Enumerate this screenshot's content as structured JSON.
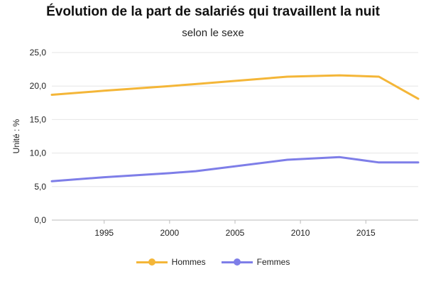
{
  "chart_data": {
    "type": "line",
    "title": "Évolution de la part de salariés qui travaillent la nuit",
    "subtitle": "selon le sexe",
    "xlabel": "",
    "ylabel": "Unité : %",
    "xlim": [
      1991,
      2019
    ],
    "ylim": [
      0,
      25
    ],
    "x_ticks": [
      1995,
      2000,
      2005,
      2010,
      2015
    ],
    "y_ticks": [
      "0,0",
      "5,0",
      "10,0",
      "15,0",
      "20,0",
      "25,0"
    ],
    "y_tick_values": [
      0,
      5,
      10,
      15,
      20,
      25
    ],
    "grid": true,
    "legend_position": "bottom",
    "series": [
      {
        "name": "Hommes",
        "color": "#f4b638",
        "x": [
          1991,
          1995,
          2000,
          2002,
          2009,
          2013,
          2016,
          2019
        ],
        "values": [
          18.7,
          19.3,
          20.0,
          20.3,
          21.4,
          21.6,
          21.4,
          18.1
        ]
      },
      {
        "name": "Femmes",
        "color": "#7e7ee8",
        "x": [
          1991,
          1995,
          2000,
          2002,
          2009,
          2013,
          2016,
          2019
        ],
        "values": [
          5.8,
          6.4,
          7.0,
          7.3,
          9.0,
          9.4,
          8.6,
          8.6
        ]
      }
    ]
  }
}
